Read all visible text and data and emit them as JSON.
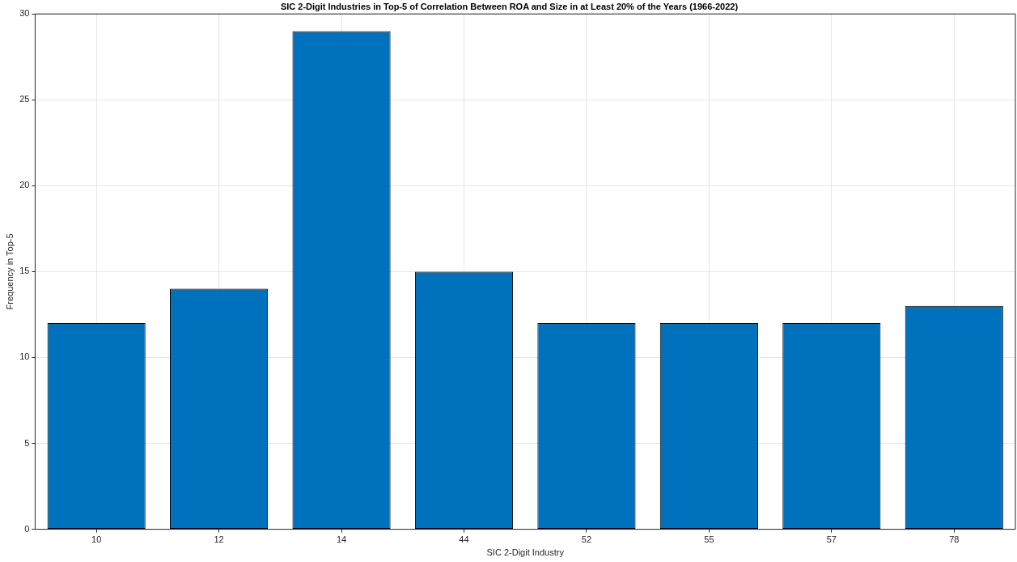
{
  "chart_data": {
    "type": "bar",
    "title": "SIC 2-Digit Industries in Top-5 of Correlation Between ROA and Size in at Least 20% of the Years (1966-2022)",
    "xlabel": "SIC 2-Digit Industry",
    "ylabel": "Frequency in Top-5",
    "categories": [
      "10",
      "12",
      "14",
      "44",
      "52",
      "55",
      "57",
      "78"
    ],
    "values": [
      12,
      14,
      29,
      15,
      12,
      12,
      12,
      13
    ],
    "color": "#0072bd",
    "ylim": [
      0,
      30
    ],
    "yticks": [
      0,
      5,
      10,
      15,
      20,
      25,
      30
    ],
    "grid": true
  }
}
